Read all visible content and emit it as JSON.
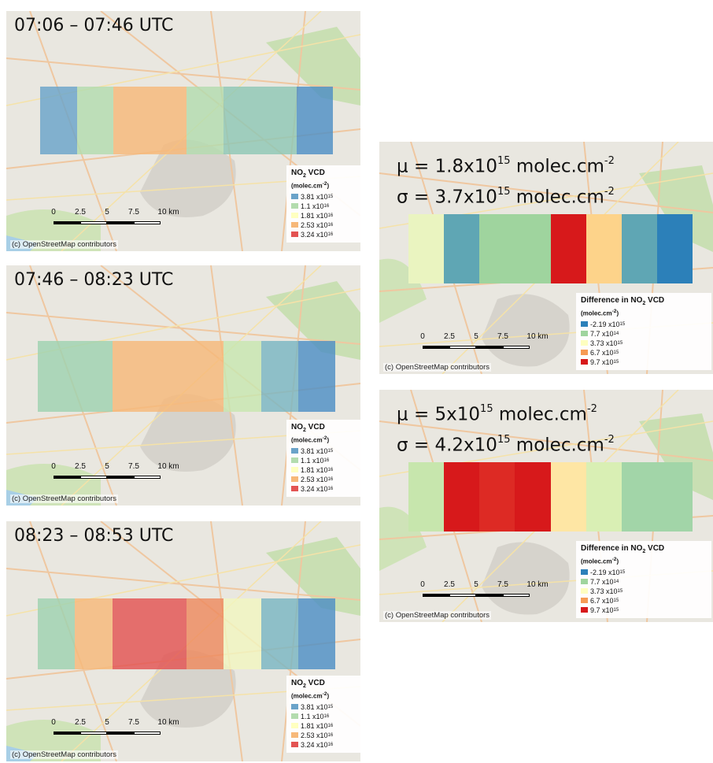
{
  "colors": {
    "no2": [
      "#6aa3c9",
      "#b3dcae",
      "#ffffc0",
      "#f7b879",
      "#e35352"
    ],
    "diff": [
      "#2c80b9",
      "#9fd49e",
      "#fefec0",
      "#f69b55",
      "#d7191b"
    ]
  },
  "no2_legend": {
    "title": "NO",
    "title_sub": "2",
    "title_rest": " VCD",
    "unit": "(molec.cm",
    "unit_sup": "-2",
    "unit_end": ")",
    "entries": [
      {
        "mant": "3.81 x10",
        "exp": "15"
      },
      {
        "mant": "1.1 x10",
        "exp": "16"
      },
      {
        "mant": "1.81 x10",
        "exp": "16"
      },
      {
        "mant": "2.53 x10",
        "exp": "16"
      },
      {
        "mant": "3.24 x10",
        "exp": "16"
      }
    ]
  },
  "diff_legend": {
    "title": "Difference in NO",
    "title_sub": "2",
    "title_rest": " VCD",
    "unit": "(molec.cm",
    "unit_sup": "-2",
    "unit_end": ")",
    "entries": [
      {
        "mant": "-2.19 x10",
        "exp": "15"
      },
      {
        "mant": "7.7 x10",
        "exp": "14"
      },
      {
        "mant": "3.73 x10",
        "exp": "15"
      },
      {
        "mant": "6.7 x10",
        "exp": "15"
      },
      {
        "mant": "9.7 x10",
        "exp": "15"
      }
    ]
  },
  "scale": {
    "labels": [
      "0",
      "2.5",
      "5",
      "7.5",
      "10 km"
    ]
  },
  "credit": "(c) OpenStreetMap contributors",
  "panels": [
    {
      "id": "p1",
      "title": "07:06 – 07:46 UTC",
      "cells": [
        "#6aa3c9",
        "#b3dcae",
        "#f7b879",
        "#f7b879",
        "#b3dcae",
        "#8fc7b4",
        "#8fc7b4",
        "#4e8fc5"
      ]
    },
    {
      "id": "p2",
      "title": "07:46 – 08:23 UTC",
      "cells": [
        "#9fd2b0",
        "#9fd2b0",
        "#f7b879",
        "#f7b879",
        "#f7b879",
        "#c8e6b0",
        "#7ab6c2",
        "#4e8fc5"
      ]
    },
    {
      "id": "p3",
      "title": "08:23 – 08:53 UTC",
      "cells": [
        "#9fd2b0",
        "#f7b879",
        "#e35352",
        "#e35352",
        "#ee8a5e",
        "#f2f5c0",
        "#7ab6c2",
        "#4e8fc5"
      ]
    }
  ],
  "diff_panels": [
    {
      "id": "d1",
      "mu": {
        "pre": "μ = 1.8x10",
        "exp": "15",
        "post": " molec.cm",
        "unit_exp": "-2"
      },
      "sigma": {
        "pre": "σ = 3.7x10",
        "exp": "15",
        "post": " molec.cm",
        "unit_exp": "-2"
      },
      "cells": [
        "#eaf4c0",
        "#5fa6b4",
        "#9fd49e",
        "#9fd49e",
        "#d7191b",
        "#fdd38a",
        "#5fa6b4",
        "#2c80b9"
      ]
    },
    {
      "id": "d2",
      "mu": {
        "pre": "μ = 5x10",
        "exp": "15",
        "post": " molec.cm",
        "unit_exp": "-2"
      },
      "sigma": {
        "pre": "σ = 4.2x10",
        "exp": "15",
        "post": " molec.cm",
        "unit_exp": "-2"
      },
      "cells": [
        "#c7e6ad",
        "#d7191b",
        "#dd2a24",
        "#d7191b",
        "#fee6a4",
        "#d9efb4",
        "#a2d5a8",
        "#a2d5a8"
      ]
    }
  ]
}
